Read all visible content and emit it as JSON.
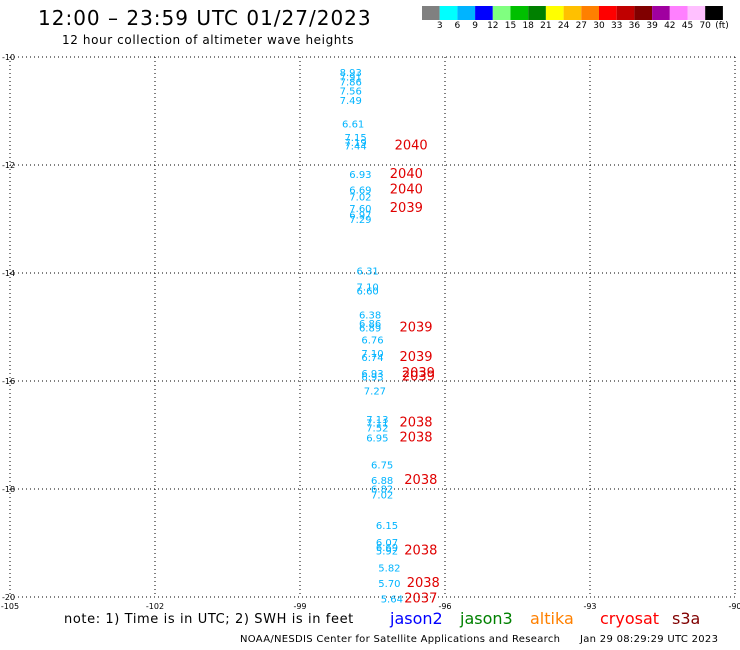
{
  "header": {
    "title": "12:00 – 23:59 UTC 01/27/2023",
    "subtitle": "12 hour collection of altimeter wave heights"
  },
  "colorbar": {
    "labels": [
      "3",
      "6",
      "9",
      "12",
      "15",
      "18",
      "21",
      "24",
      "27",
      "30",
      "33",
      "36",
      "39",
      "42",
      "45",
      "70"
    ],
    "unit": "(ft)",
    "colors": [
      "#808080",
      "#00ffff",
      "#00b4ff",
      "#0000ff",
      "#80ff80",
      "#00c000",
      "#008000",
      "#ffff00",
      "#ffc000",
      "#ff8000",
      "#ff0000",
      "#c00000",
      "#800000",
      "#a000a0",
      "#ff80ff",
      "#ffc0ff",
      "#000000"
    ]
  },
  "footer": {
    "note": "note: 1) Time is in UTC; 2) SWH is in feet",
    "credit": "NOAA/NESDIS Center for Satellite Applications and Research",
    "generated": "Jan 29 08:29:29 UTC 2023"
  },
  "legend": [
    {
      "name": "jason2",
      "color": "#0000ff"
    },
    {
      "name": "jason3",
      "color": "#008000"
    },
    {
      "name": "altika",
      "color": "#ff8000"
    },
    {
      "name": "cryosat",
      "color": "#ff0000"
    },
    {
      "name": "s3a",
      "color": "#800000"
    }
  ],
  "chart_data": {
    "type": "scatter",
    "title": "12:00 – 23:59 UTC 01/27/2023",
    "xlim": [
      -105,
      -90
    ],
    "ylim": [
      -20,
      -10
    ],
    "x_ticks": [
      -105,
      -102,
      -99,
      -96,
      -93,
      -90
    ],
    "y_ticks": [
      -10,
      -12,
      -14,
      -16,
      -18,
      -20
    ],
    "grid": true,
    "series": [
      {
        "name": "altimeter",
        "color": "#00b4ff",
        "points": [
          {
            "lon": -97.95,
            "lat": -10.28,
            "label": "8.93"
          },
          {
            "lon": -97.95,
            "lat": -10.36,
            "label": "7.91"
          },
          {
            "lon": -97.95,
            "lat": -10.45,
            "label": "7.86"
          },
          {
            "lon": -97.95,
            "lat": -10.62,
            "label": "7.56"
          },
          {
            "lon": -97.95,
            "lat": -10.8,
            "label": "7.49"
          },
          {
            "lon": -97.9,
            "lat": -11.23,
            "label": "6.61"
          },
          {
            "lon": -97.85,
            "lat": -11.48,
            "label": "7.15"
          },
          {
            "lon": -97.85,
            "lat": -11.57,
            "label": "7.19"
          },
          {
            "lon": -97.85,
            "lat": -11.64,
            "label": "7.44"
          },
          {
            "lon": -97.75,
            "lat": -12.17,
            "label": "6.93"
          },
          {
            "lon": -97.75,
            "lat": -12.45,
            "label": "6.69"
          },
          {
            "lon": -97.75,
            "lat": -12.58,
            "label": "7.02"
          },
          {
            "lon": -97.75,
            "lat": -12.8,
            "label": "7.60"
          },
          {
            "lon": -97.75,
            "lat": -12.92,
            "label": "6.97"
          },
          {
            "lon": -97.75,
            "lat": -13.0,
            "label": "7.29"
          },
          {
            "lon": -97.6,
            "lat": -13.95,
            "label": "6.31"
          },
          {
            "lon": -97.6,
            "lat": -14.25,
            "label": "7.10"
          },
          {
            "lon": -97.6,
            "lat": -14.32,
            "label": "6.60"
          },
          {
            "lon": -97.55,
            "lat": -14.77,
            "label": "6.38"
          },
          {
            "lon": -97.55,
            "lat": -14.93,
            "label": "6.86"
          },
          {
            "lon": -97.55,
            "lat": -15.01,
            "label": "6.89"
          },
          {
            "lon": -97.5,
            "lat": -15.23,
            "label": "6.76"
          },
          {
            "lon": -97.5,
            "lat": -15.48,
            "label": "7.10"
          },
          {
            "lon": -97.5,
            "lat": -15.56,
            "label": "6.74"
          },
          {
            "lon": -97.5,
            "lat": -15.85,
            "label": "6.93"
          },
          {
            "lon": -97.5,
            "lat": -15.92,
            "label": "6.93"
          },
          {
            "lon": -97.45,
            "lat": -16.18,
            "label": "7.27"
          },
          {
            "lon": -97.4,
            "lat": -16.7,
            "label": "7.13"
          },
          {
            "lon": -97.4,
            "lat": -16.77,
            "label": "7.11"
          },
          {
            "lon": -97.4,
            "lat": -16.86,
            "label": "7.52"
          },
          {
            "lon": -97.4,
            "lat": -17.05,
            "label": "6.95"
          },
          {
            "lon": -97.3,
            "lat": -17.55,
            "label": "6.75"
          },
          {
            "lon": -97.3,
            "lat": -17.83,
            "label": "6.88"
          },
          {
            "lon": -97.3,
            "lat": -17.99,
            "label": "6.82"
          },
          {
            "lon": -97.3,
            "lat": -18.1,
            "label": "7.02"
          },
          {
            "lon": -97.2,
            "lat": -18.67,
            "label": "6.15"
          },
          {
            "lon": -97.2,
            "lat": -18.98,
            "label": "6.07"
          },
          {
            "lon": -97.2,
            "lat": -19.07,
            "label": "6.69"
          },
          {
            "lon": -97.2,
            "lat": -19.14,
            "label": "5.92"
          },
          {
            "lon": -97.15,
            "lat": -19.45,
            "label": "5.82"
          },
          {
            "lon": -97.15,
            "lat": -19.74,
            "label": "5.70"
          },
          {
            "lon": -97.1,
            "lat": -20.03,
            "label": "5.64"
          }
        ]
      },
      {
        "name": "cryosat",
        "color": "#e00000",
        "points": [
          {
            "lon": -96.7,
            "lat": -11.64,
            "label": "2040"
          },
          {
            "lon": -96.8,
            "lat": -12.17,
            "label": "2040"
          },
          {
            "lon": -96.8,
            "lat": -12.45,
            "label": "2040"
          },
          {
            "lon": -96.8,
            "lat": -12.8,
            "label": "2039"
          },
          {
            "lon": -96.6,
            "lat": -15.01,
            "label": "2039"
          },
          {
            "lon": -96.6,
            "lat": -15.56,
            "label": "2039"
          },
          {
            "lon": -96.55,
            "lat": -15.85,
            "label": "2039"
          },
          {
            "lon": -96.55,
            "lat": -15.92,
            "label": "2039"
          },
          {
            "lon": -96.6,
            "lat": -16.77,
            "label": "2038"
          },
          {
            "lon": -96.6,
            "lat": -17.05,
            "label": "2038"
          },
          {
            "lon": -96.5,
            "lat": -17.83,
            "label": "2038"
          },
          {
            "lon": -96.5,
            "lat": -19.14,
            "label": "2038"
          },
          {
            "lon": -96.45,
            "lat": -19.74,
            "label": "2038"
          },
          {
            "lon": -96.5,
            "lat": -20.03,
            "label": "2037"
          }
        ]
      }
    ]
  }
}
